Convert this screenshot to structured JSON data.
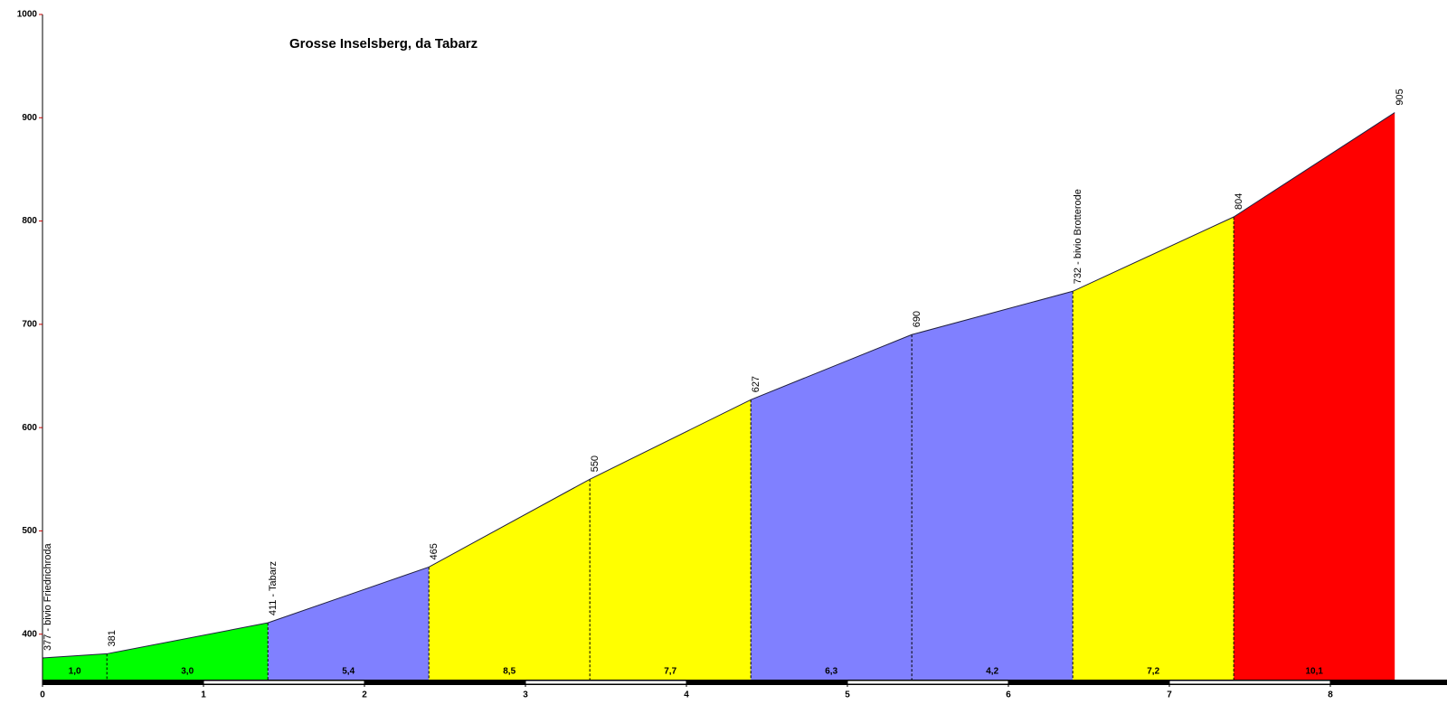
{
  "chart_data": {
    "type": "area",
    "title": "Grosse Inselsberg, da Tabarz",
    "x": [
      0,
      0.4,
      1.4,
      2.4,
      3.4,
      4.4,
      5.4,
      6.4,
      7.4,
      8.4
    ],
    "values": [
      377,
      381,
      411,
      465,
      550,
      627,
      690,
      732,
      804,
      905
    ],
    "value_labels": [
      "377 - bivio Friedrichroda",
      "381",
      "411 - Tabarz",
      "465",
      "550",
      "627",
      "690",
      "732 - bivio Brotterode",
      "804",
      "905"
    ],
    "gradients": [
      1.0,
      3.0,
      5.4,
      8.5,
      7.7,
      6.3,
      4.2,
      7.2,
      10.1
    ],
    "gradient_labels": [
      "1,0",
      "3,0",
      "5,4",
      "8,5",
      "7,7",
      "6,3",
      "4,2",
      "7,2",
      "10,1"
    ],
    "segment_colors": [
      "#00ff00",
      "#00ff00",
      "#8080ff",
      "#ffff00",
      "#ffff00",
      "#8080ff",
      "#8080ff",
      "#ffff00",
      "#ff0000"
    ],
    "xlim": [
      0,
      8.8
    ],
    "ylim": [
      356,
      1000
    ],
    "xticks": [
      0,
      1,
      2,
      3,
      4,
      5,
      6,
      7,
      8
    ],
    "yticks": [
      400,
      500,
      600,
      700,
      800,
      900,
      1000
    ]
  }
}
